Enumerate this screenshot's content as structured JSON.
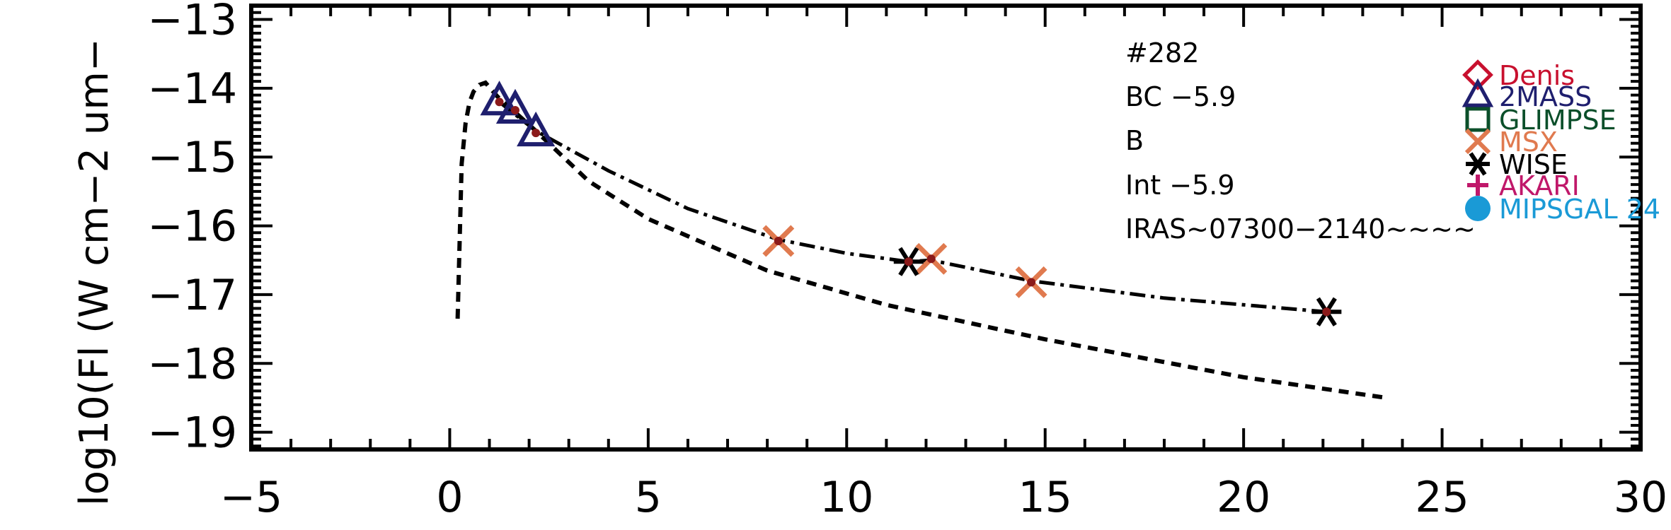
{
  "chart_data": {
    "type": "scatter",
    "xlabel": "",
    "ylabel": "log10(Fl (W cm−2 um−",
    "xlim": [
      -5,
      30
    ],
    "ylim": [
      -19.25,
      -12.8
    ],
    "x_ticks": [
      "−5",
      "0",
      "5",
      "10",
      "15",
      "20",
      "25",
      "30"
    ],
    "y_ticks": [
      "−13",
      "−14",
      "−15",
      "−16",
      "−17",
      "−18",
      "−19"
    ],
    "grid": false,
    "legend_position": "top-right",
    "annotations": [
      "#282",
      "BC −5.9",
      "B",
      "Int −5.9",
      "IRAS~07300−2140~~~~"
    ],
    "legend": [
      {
        "name": "Denis",
        "marker": "diamond",
        "color": "#c8102e"
      },
      {
        "name": "2MASS",
        "marker": "triangle",
        "color": "#1f1f6e"
      },
      {
        "name": "GLIMPSE",
        "marker": "square",
        "color": "#0b4f2a"
      },
      {
        "name": "MSX",
        "marker": "x",
        "color": "#e07a4f"
      },
      {
        "name": "WISE",
        "marker": "asterisk",
        "color": "#000000"
      },
      {
        "name": "AKARI",
        "marker": "plus",
        "color": "#c0186a"
      },
      {
        "name": "MIPSGAL 24",
        "marker": "circle",
        "color": "#1a9ad6"
      }
    ],
    "series": [
      {
        "name": "2MASS",
        "marker": "triangle",
        "color": "#1f1f6e",
        "x": [
          1.25,
          1.65,
          2.17
        ],
        "y": [
          -14.2,
          -14.32,
          -14.65
        ]
      },
      {
        "name": "MSX",
        "marker": "x",
        "color": "#e07a4f",
        "x": [
          8.28,
          12.13,
          14.65
        ],
        "y": [
          -16.22,
          -16.48,
          -16.82
        ]
      },
      {
        "name": "WISE",
        "marker": "asterisk",
        "color": "#000000",
        "x": [
          11.56,
          22.09
        ],
        "y": [
          -16.52,
          -17.25
        ]
      }
    ],
    "inner_points": {
      "color": "#8b1a1a",
      "x": [
        1.25,
        1.65,
        2.17,
        8.28,
        11.56,
        12.13,
        14.65,
        22.09
      ],
      "y": [
        -14.2,
        -14.32,
        -14.65,
        -16.22,
        -16.52,
        -16.48,
        -16.82,
        -17.25
      ]
    },
    "dashed_curve": {
      "x": [
        0.2,
        0.25,
        0.3,
        0.4,
        0.5,
        0.6,
        0.75,
        0.9,
        1.2,
        2.17,
        3.5,
        5,
        8,
        11,
        15,
        20,
        23.6
      ],
      "y": [
        -17.35,
        -16.2,
        -15.1,
        -14.5,
        -14.2,
        -14.05,
        -13.95,
        -13.92,
        -14.12,
        -14.62,
        -15.35,
        -15.9,
        -16.65,
        -17.15,
        -17.65,
        -18.2,
        -18.5
      ]
    },
    "dashdot_curve": {
      "x": [
        1.25,
        2.17,
        4,
        6,
        8.28,
        10,
        11.56,
        12.13,
        14.65,
        18,
        22.09
      ],
      "y": [
        -14.2,
        -14.62,
        -15.2,
        -15.75,
        -16.2,
        -16.4,
        -16.52,
        -16.5,
        -16.8,
        -17.05,
        -17.25
      ]
    }
  }
}
